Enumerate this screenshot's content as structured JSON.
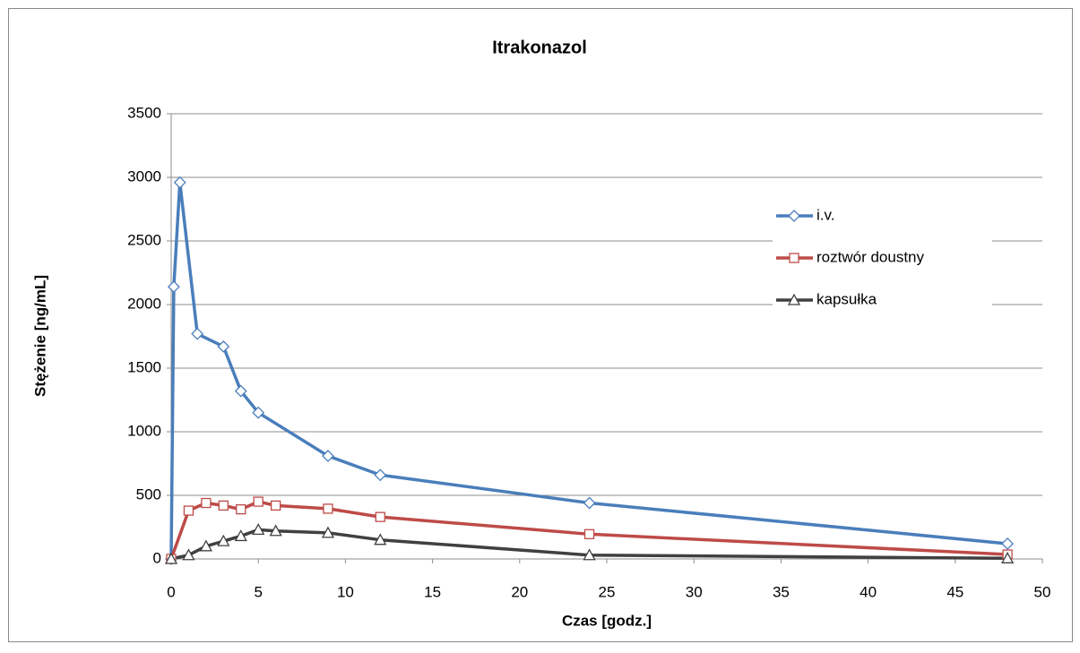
{
  "chart_data": {
    "type": "line",
    "title": "Itrakonazol",
    "x_label": "Czas [godz.]",
    "y_label": "Stężenie [ng/mL]",
    "xlim": [
      0,
      50
    ],
    "xticks": [
      0,
      5,
      10,
      15,
      20,
      25,
      30,
      35,
      40,
      45,
      50
    ],
    "ylim": [
      0,
      3500
    ],
    "yticks": [
      0,
      500,
      1000,
      1500,
      2000,
      2500,
      3000,
      3500
    ],
    "grid": true,
    "legend": "right",
    "series": [
      {
        "name": "i.v.",
        "color": "#4a7ebb",
        "marker": "diamond",
        "x": [
          0,
          0.15,
          0.5,
          1.5,
          3,
          4,
          5,
          9,
          12,
          24,
          48
        ],
        "values": [
          0,
          2140,
          2960,
          1770,
          1670,
          1320,
          1150,
          810,
          660,
          440,
          120
        ]
      },
      {
        "name": "roztwór doustny",
        "color": "#be4b48",
        "marker": "square",
        "x": [
          0,
          1,
          2,
          3,
          4,
          5,
          6,
          9,
          12,
          24,
          48
        ],
        "values": [
          0,
          380,
          440,
          420,
          390,
          450,
          420,
          395,
          330,
          195,
          35
        ]
      },
      {
        "name": "kapsułka",
        "color": "#404040",
        "marker": "triangle",
        "x": [
          0,
          1,
          2,
          3,
          4,
          5,
          6,
          9,
          12,
          24,
          48
        ],
        "values": [
          0,
          30,
          100,
          140,
          180,
          230,
          220,
          205,
          150,
          30,
          5
        ]
      }
    ]
  }
}
